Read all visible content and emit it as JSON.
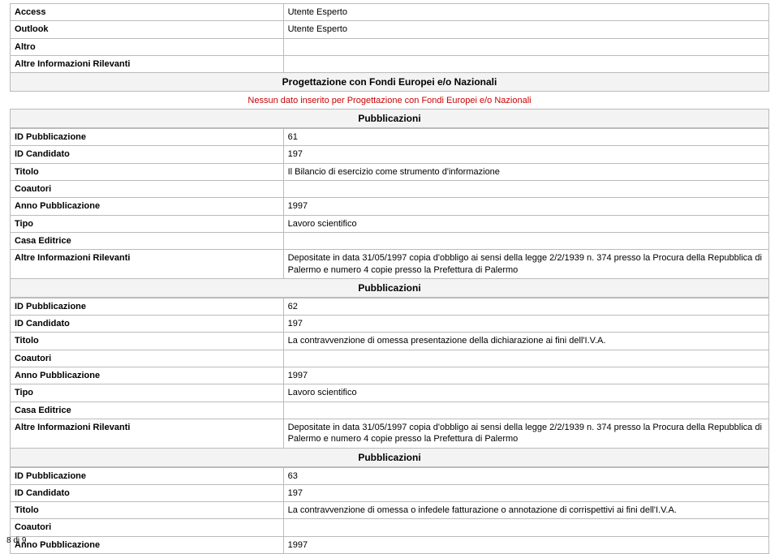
{
  "colors": {
    "border": "#bbbbbb",
    "header_bg": "#f3f3f3",
    "red": "#cc0000",
    "text": "#000000",
    "background": "#ffffff"
  },
  "top_rows": [
    {
      "label": "Access",
      "value": "Utente Esperto"
    },
    {
      "label": "Outlook",
      "value": "Utente Esperto"
    },
    {
      "label": "Altro",
      "value": ""
    },
    {
      "label": "Altre Informazioni Rilevanti",
      "value": ""
    }
  ],
  "project_section": {
    "title": "Progettazione con Fondi Europei e/o Nazionali",
    "note": "Nessun dato inserito per Progettazione con Fondi Europei e/o Nazionali"
  },
  "pub_header": "Pubblicazioni",
  "pub1": {
    "id_label": "ID Pubblicazione",
    "id_val": "61",
    "cand_label": "ID Candidato",
    "cand_val": "197",
    "title_label": "Titolo",
    "title_val": "Il Bilancio di esercizio come strumento d'informazione",
    "coauth_label": "Coautori",
    "coauth_val": "",
    "year_label": "Anno Pubblicazione",
    "year_val": "1997",
    "type_label": "Tipo",
    "type_val": "Lavoro scientifico",
    "pub_house_label": "Casa Editrice",
    "pub_house_val": "",
    "other_label": "Altre Informazioni Rilevanti",
    "other_val": "Depositate in data 31/05/1997 copia d'obbligo ai sensi della legge 2/2/1939 n. 374 presso la Procura della Repubblica di Palermo e numero 4 copie presso la Prefettura di Palermo"
  },
  "pub2": {
    "id_label": "ID Pubblicazione",
    "id_val": "62",
    "cand_label": "ID Candidato",
    "cand_val": "197",
    "title_label": "Titolo",
    "title_val": "La contravvenzione di omessa presentazione della dichiarazione ai fini dell'I.V.A.",
    "coauth_label": "Coautori",
    "coauth_val": "",
    "year_label": "Anno Pubblicazione",
    "year_val": "1997",
    "type_label": "Tipo",
    "type_val": "Lavoro scientifico",
    "pub_house_label": "Casa Editrice",
    "pub_house_val": "",
    "other_label": "Altre Informazioni Rilevanti",
    "other_val": "Depositate in data 31/05/1997 copia d'obbligo ai sensi della legge 2/2/1939 n. 374 presso la Procura della Repubblica di Palermo e numero 4 copie presso la Prefettura di Palermo"
  },
  "pub3": {
    "id_label": "ID Pubblicazione",
    "id_val": "63",
    "cand_label": "ID Candidato",
    "cand_val": "197",
    "title_label": "Titolo",
    "title_val": "La contravvenzione di omessa o infedele fatturazione o annotazione di corrispettivi ai fini dell'I.V.A.",
    "coauth_label": "Coautori",
    "coauth_val": "",
    "year_label": "Anno Pubblicazione",
    "year_val": "1997"
  },
  "footer": "8 di 9"
}
